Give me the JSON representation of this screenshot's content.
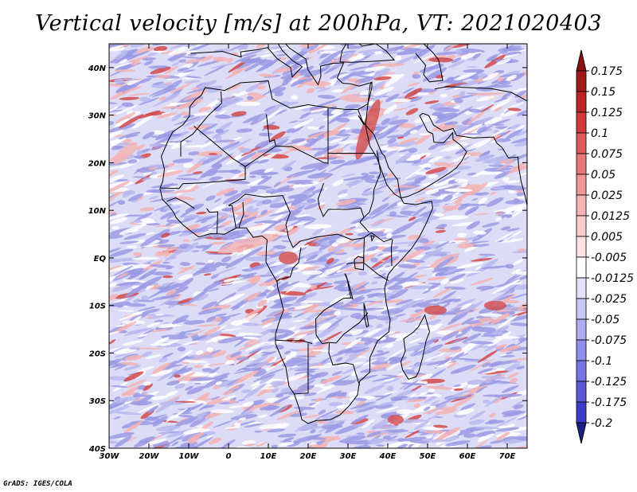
{
  "title": "Vertical velocity [m/s] at 200hPa, VT: 2021020403",
  "footer": "GrADS: IGES/COLA",
  "map": {
    "lon_range": [
      -30,
      75
    ],
    "lat_range": [
      -40,
      45
    ],
    "lat_ticks": [
      {
        "value": 40,
        "label": "40N"
      },
      {
        "value": 30,
        "label": "30N"
      },
      {
        "value": 20,
        "label": "20N"
      },
      {
        "value": 10,
        "label": "10N"
      },
      {
        "value": 0,
        "label": "EQ"
      },
      {
        "value": -10,
        "label": "10S"
      },
      {
        "value": -20,
        "label": "20S"
      },
      {
        "value": -30,
        "label": "30S"
      },
      {
        "value": -40,
        "label": "40S"
      }
    ],
    "lon_ticks": [
      {
        "value": -30,
        "label": "30W"
      },
      {
        "value": -20,
        "label": "20W"
      },
      {
        "value": -10,
        "label": "10W"
      },
      {
        "value": 0,
        "label": "0"
      },
      {
        "value": 10,
        "label": "10E"
      },
      {
        "value": 20,
        "label": "20E"
      },
      {
        "value": 30,
        "label": "30E"
      },
      {
        "value": 40,
        "label": "40E"
      },
      {
        "value": 50,
        "label": "50E"
      },
      {
        "value": 60,
        "label": "60E"
      },
      {
        "value": 70,
        "label": "70E"
      }
    ]
  },
  "colorbar": {
    "levels": [
      {
        "label": "0.175",
        "color": "#a01a1a"
      },
      {
        "label": "0.15",
        "color": "#bb2424"
      },
      {
        "label": "0.125",
        "color": "#d23a3a"
      },
      {
        "label": "0.1",
        "color": "#df5a5a"
      },
      {
        "label": "0.075",
        "color": "#e77878"
      },
      {
        "label": "0.05",
        "color": "#ef9696"
      },
      {
        "label": "0.025",
        "color": "#f5b4b4"
      },
      {
        "label": "0.0125",
        "color": "#f9cccc"
      },
      {
        "label": "0.005",
        "color": "#fce2e2"
      },
      {
        "label": "-0.005",
        "color": "#ffffff"
      },
      {
        "label": "-0.0125",
        "color": "#e2e2fa"
      },
      {
        "label": "-0.025",
        "color": "#c8c8f5"
      },
      {
        "label": "-0.05",
        "color": "#acacf0"
      },
      {
        "label": "-0.075",
        "color": "#9090ea"
      },
      {
        "label": "-0.1",
        "color": "#7474e2"
      },
      {
        "label": "-0.125",
        "color": "#5858d8"
      },
      {
        "label": "-0.175",
        "color": "#3c3cc8"
      },
      {
        "label": "-0.2",
        "color": "#2a2aa8"
      }
    ],
    "top_arrow_color": "#8e1010",
    "bottom_arrow_color": "#1e1e8a"
  },
  "field_colors": {
    "background": "#dcdcf6",
    "strong_up": "#b8b8ee",
    "ascent": "#9a9ae4",
    "descent": "#f3b3b3",
    "strong_descent": "#d24a4a"
  }
}
